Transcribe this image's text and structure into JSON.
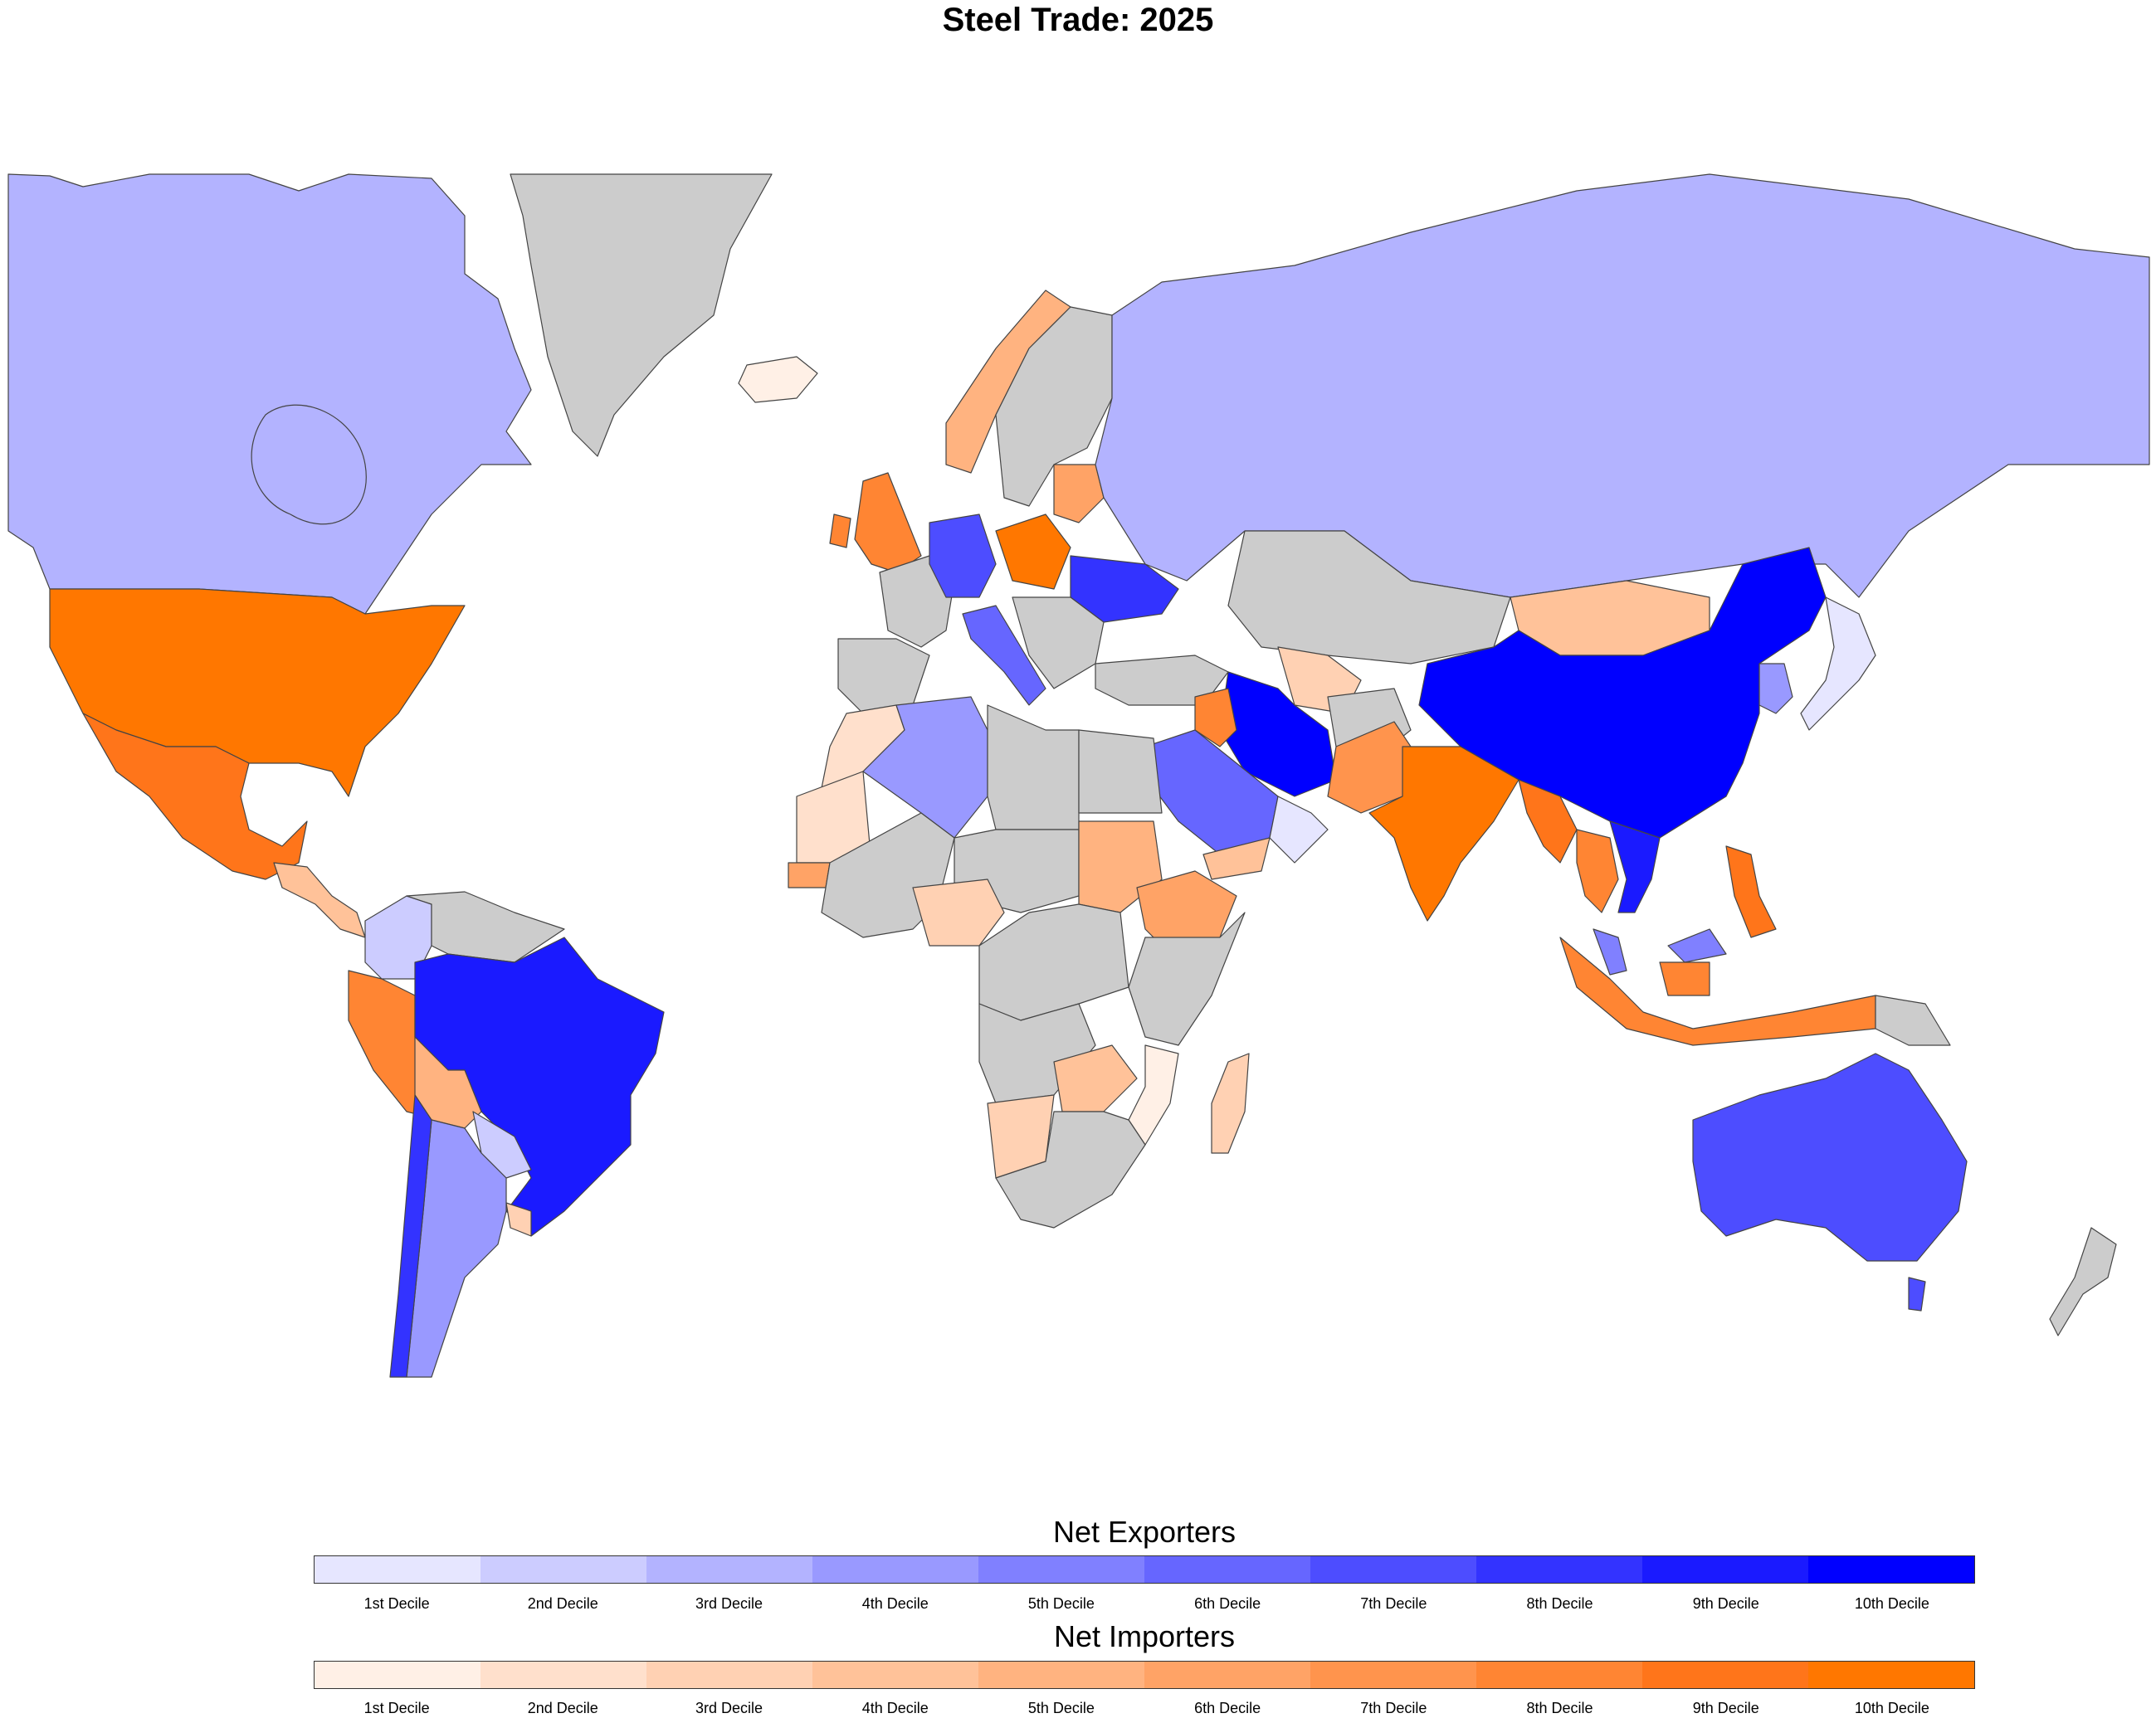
{
  "title": "Steel Trade: 2025",
  "colors": {
    "no_data": "#cccccc",
    "border": "#444444",
    "exporters": [
      "#e6e6ff",
      "#ccccff",
      "#b3b3ff",
      "#9999ff",
      "#8080ff",
      "#6666ff",
      "#4d4dff",
      "#3333ff",
      "#1a1aff",
      "#0000ff"
    ],
    "importers": [
      "#fff0e6",
      "#ffe0cc",
      "#ffd1b3",
      "#ffc299",
      "#ffb380",
      "#ffa366",
      "#ff944d",
      "#ff8533",
      "#ff751a",
      "#ff7700"
    ]
  },
  "legend": {
    "exporters": {
      "title": "Net Exporters",
      "labels": [
        "1st Decile",
        "2nd Decile",
        "3rd Decile",
        "4th Decile",
        "5th Decile",
        "6th Decile",
        "7th Decile",
        "8th Decile",
        "9th Decile",
        "10th Decile"
      ]
    },
    "importers": {
      "title": "Net Importers",
      "labels": [
        "1st Decile",
        "2nd Decile",
        "3rd Decile",
        "4th Decile",
        "5th Decile",
        "6th Decile",
        "7th Decile",
        "8th Decile",
        "9th Decile",
        "10th Decile"
      ]
    }
  },
  "regions": [
    {
      "id": "canada",
      "cls": "E3"
    },
    {
      "id": "usa",
      "cls": "I10"
    },
    {
      "id": "mexico",
      "cls": "I9"
    },
    {
      "id": "greenland",
      "cls": "N"
    },
    {
      "id": "iceland",
      "cls": "I1"
    },
    {
      "id": "central-america",
      "cls": "I4"
    },
    {
      "id": "colombia",
      "cls": "E2"
    },
    {
      "id": "venezuela",
      "cls": "N"
    },
    {
      "id": "brazil",
      "cls": "E9"
    },
    {
      "id": "peru",
      "cls": "I8"
    },
    {
      "id": "bolivia",
      "cls": "I5"
    },
    {
      "id": "chile",
      "cls": "E8"
    },
    {
      "id": "argentina",
      "cls": "E4"
    },
    {
      "id": "paraguay",
      "cls": "E2"
    },
    {
      "id": "uruguay",
      "cls": "I3"
    },
    {
      "id": "uk",
      "cls": "I8"
    },
    {
      "id": "norway",
      "cls": "I5"
    },
    {
      "id": "sweden-finland",
      "cls": "N"
    },
    {
      "id": "spain-portugal",
      "cls": "N"
    },
    {
      "id": "france",
      "cls": "N"
    },
    {
      "id": "germany",
      "cls": "E7"
    },
    {
      "id": "poland",
      "cls": "I10"
    },
    {
      "id": "italy",
      "cls": "E6"
    },
    {
      "id": "ukraine",
      "cls": "E8"
    },
    {
      "id": "baltics",
      "cls": "I6"
    },
    {
      "id": "balkans",
      "cls": "N"
    },
    {
      "id": "turkey",
      "cls": "N"
    },
    {
      "id": "russia",
      "cls": "E3"
    },
    {
      "id": "kazakhstan",
      "cls": "N"
    },
    {
      "id": "central-asia",
      "cls": "I3"
    },
    {
      "id": "mongolia",
      "cls": "I4"
    },
    {
      "id": "china",
      "cls": "E10"
    },
    {
      "id": "korea",
      "cls": "E4"
    },
    {
      "id": "japan",
      "cls": "E1"
    },
    {
      "id": "iran",
      "cls": "E10"
    },
    {
      "id": "iraq",
      "cls": "I8"
    },
    {
      "id": "saudi-arabia",
      "cls": "E6"
    },
    {
      "id": "oman",
      "cls": "E1"
    },
    {
      "id": "yemen",
      "cls": "I4"
    },
    {
      "id": "afghanistan",
      "cls": "N"
    },
    {
      "id": "pakistan",
      "cls": "I7"
    },
    {
      "id": "india",
      "cls": "I10"
    },
    {
      "id": "bangladesh-myanmar",
      "cls": "I9"
    },
    {
      "id": "thailand",
      "cls": "I8"
    },
    {
      "id": "vietnam",
      "cls": "E9"
    },
    {
      "id": "malaysia",
      "cls": "E5"
    },
    {
      "id": "philippines",
      "cls": "I9"
    },
    {
      "id": "indonesia",
      "cls": "I8"
    },
    {
      "id": "png",
      "cls": "N"
    },
    {
      "id": "australia",
      "cls": "E7"
    },
    {
      "id": "new-zealand",
      "cls": "N"
    },
    {
      "id": "morocco",
      "cls": "I2"
    },
    {
      "id": "algeria",
      "cls": "E4"
    },
    {
      "id": "libya",
      "cls": "N"
    },
    {
      "id": "egypt",
      "cls": "N"
    },
    {
      "id": "mauritania",
      "cls": "I2"
    },
    {
      "id": "west-africa",
      "cls": "N"
    },
    {
      "id": "senegal",
      "cls": "I6"
    },
    {
      "id": "nigeria",
      "cls": "I3"
    },
    {
      "id": "chad-niger",
      "cls": "N"
    },
    {
      "id": "sudan",
      "cls": "I5"
    },
    {
      "id": "ethiopia",
      "cls": "I6"
    },
    {
      "id": "east-africa",
      "cls": "N"
    },
    {
      "id": "central-africa",
      "cls": "N"
    },
    {
      "id": "angola-drc",
      "cls": "N"
    },
    {
      "id": "zambia",
      "cls": "I4"
    },
    {
      "id": "mozambique",
      "cls": "I1"
    },
    {
      "id": "namibia",
      "cls": "I3"
    },
    {
      "id": "south-africa",
      "cls": "N"
    },
    {
      "id": "madagascar",
      "cls": "I3"
    }
  ]
}
